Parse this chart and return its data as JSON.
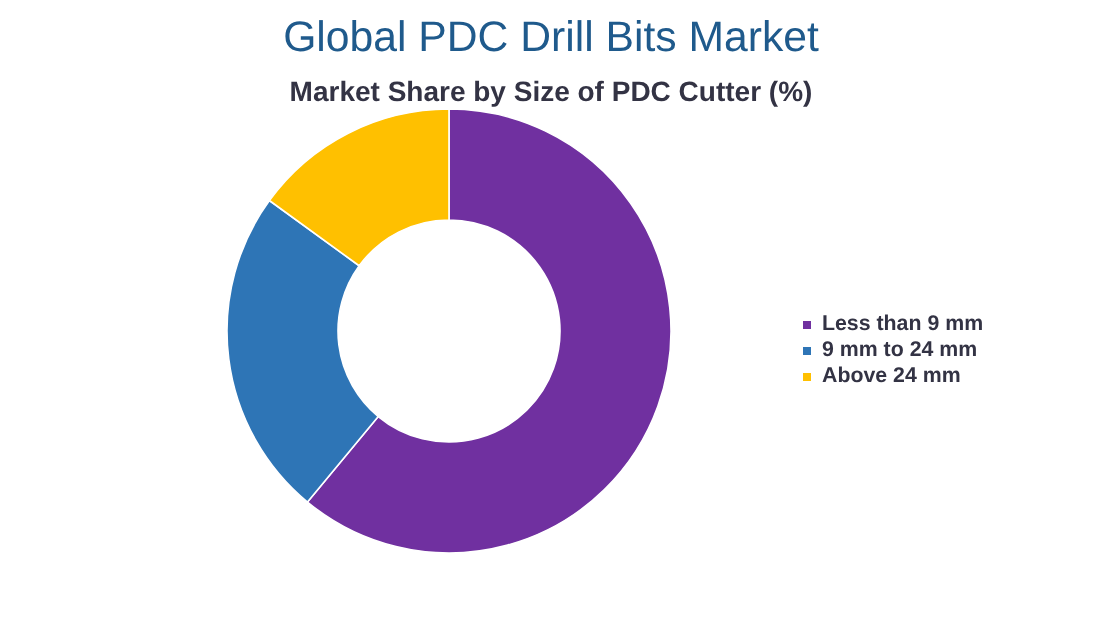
{
  "chart_data": {
    "type": "donut",
    "title": "Global PDC Drill Bits Market",
    "subtitle": "Market Share by Size of PDC Cutter (%)",
    "categories": [
      "Less than 9 mm",
      "9 mm to 24 mm",
      "Above 24 mm"
    ],
    "values": [
      61,
      24,
      15
    ],
    "colors": [
      "#7030a0",
      "#2e75b6",
      "#ffc000"
    ],
    "legend": "right"
  }
}
